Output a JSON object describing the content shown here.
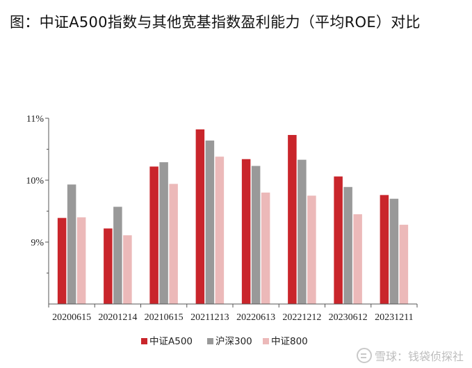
{
  "title": "图：中证A500指数与其他宽基指数盈利能力（平均ROE）对比",
  "watermark": "雪球：钱袋侦探社",
  "chart_data": {
    "type": "bar",
    "categories": [
      "20200615",
      "20201214",
      "20210615",
      "20211213",
      "20220613",
      "20221212",
      "20230612",
      "20231211"
    ],
    "series": [
      {
        "name": "中证A500",
        "color": "#c9252b",
        "values": [
          9.39,
          9.22,
          10.22,
          10.82,
          10.34,
          10.73,
          10.06,
          9.76
        ]
      },
      {
        "name": "沪深300",
        "color": "#999999",
        "values": [
          9.93,
          9.57,
          10.29,
          10.64,
          10.23,
          10.33,
          9.89,
          9.7
        ]
      },
      {
        "name": "中证800",
        "color": "#ecb9b9",
        "values": [
          9.4,
          9.11,
          9.94,
          10.38,
          9.8,
          9.75,
          9.45,
          9.28
        ]
      }
    ],
    "yticks": [
      "11%",
      "10%",
      "9%"
    ],
    "ytick_values": [
      11,
      10,
      9
    ],
    "ylim": [
      8.0,
      11.0
    ],
    "legend_position": "bottom"
  }
}
